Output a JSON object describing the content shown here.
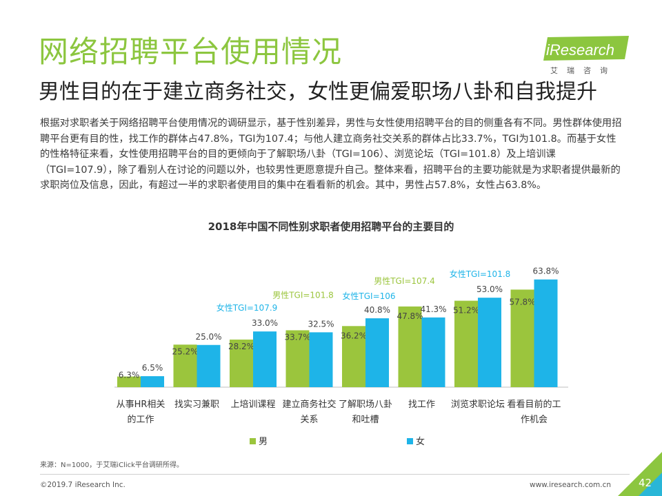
{
  "header": {
    "title": "网络招聘平台使用情况",
    "subtitle": "男性目的在于建立商务社交，女性更偏爱职场八卦和自我提升"
  },
  "logo": {
    "text": "iResearch",
    "sub": "艾瑞咨询",
    "color": "#8cc63f"
  },
  "body_text": "根据对求职者关于网络招聘平台使用情况的调研显示，基于性别差异，男性与女性使用招聘平台的目的侧重各有不同。男性群体使用招聘平台更有目的性，找工作的群体占47.8%，TGI为107.4；与他人建立商务社交关系的群体占比33.7%，TGI为101.8。而基于女性的性格特征来看，女性使用招聘平台的目的更倾向于了解职场八卦（TGI=106）、浏览论坛（TGI=101.8）及上培训课（TGI=107.9），除了看别人在讨论的问题以外，也较男性更愿意提升自己。整体来看，招聘平台的主要功能就是为求职者提供最新的求职岗位及信息，因此，有超过一半的求职者使用目的集中在看看新的机会。其中，男性占57.8%，女性占63.8%。",
  "chart_data": {
    "type": "bar",
    "title": "2018年中国不同性别求职者使用招聘平台的主要目的",
    "categories": [
      [
        "从事HR相关",
        "的工作"
      ],
      [
        "找实习兼职"
      ],
      [
        "上培训课程"
      ],
      [
        "建立商务社交",
        "关系"
      ],
      [
        "了解职场八卦",
        "和吐槽"
      ],
      [
        "找工作"
      ],
      [
        "浏览求职论坛"
      ],
      [
        "看看目前的工",
        "作机会"
      ]
    ],
    "series": [
      {
        "name": "男",
        "color": "#9bc53d",
        "values": [
          6.3,
          25.2,
          28.2,
          33.7,
          36.2,
          47.8,
          51.2,
          57.8
        ],
        "labels": [
          "6.3%",
          "25.2%",
          "28.2%",
          "33.7%",
          "36.2%",
          "47.8%",
          "51.2%",
          "57.8%"
        ]
      },
      {
        "name": "女",
        "color": "#1eb4e8",
        "values": [
          6.5,
          25.0,
          33.0,
          32.5,
          40.8,
          41.3,
          53.0,
          63.8
        ],
        "labels": [
          "6.5%",
          "25.0%",
          "33.0%",
          "32.5%",
          "40.8%",
          "41.3%",
          "53.0%",
          "63.8%"
        ]
      }
    ],
    "annotations": [
      {
        "text": "女性TGI=107.9",
        "category": 2,
        "series": "女",
        "color": "#1eb4e8"
      },
      {
        "text": "男性TGI=101.8",
        "category": 3,
        "series": "男",
        "color": "#9bc53d"
      },
      {
        "text": "女性TGI=106",
        "category": 4,
        "series": "女",
        "color": "#1eb4e8"
      },
      {
        "text": "男性TGI=107.4",
        "category": 5,
        "series": "男",
        "color": "#9bc53d"
      },
      {
        "text": "女性TGI=101.8",
        "category": 6,
        "series": "女",
        "color": "#1eb4e8"
      }
    ],
    "ylim": [
      0,
      70
    ],
    "grid": false,
    "legend": "bottom"
  },
  "source": "来源：N=1000，于艾瑞iClick平台调研所得。",
  "footer": {
    "copyright": "©2019.7 iResearch Inc.",
    "url": "www.iresearch.com.cn",
    "page": "42"
  }
}
